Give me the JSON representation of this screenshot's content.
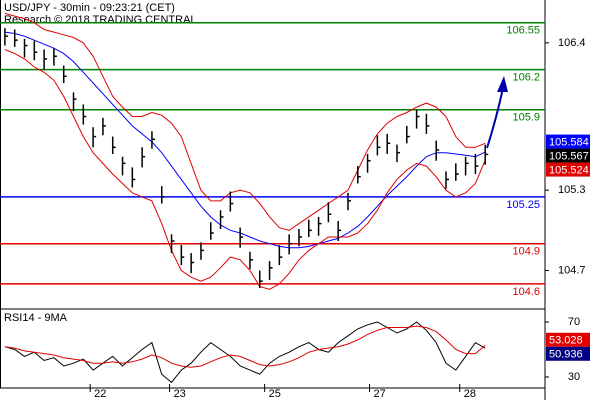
{
  "chart_data": [
    {
      "type": "ohlc",
      "title": "USD/JPY - 30min - 09:23:21 (CET)",
      "subtitle": "Research © 2018 TRADING CENTRAL",
      "xlim": [
        -0.5,
        55.1
      ],
      "ylim": [
        104.42,
        106.72
      ],
      "yticks": [
        106.4,
        105.3,
        104.7
      ],
      "color": "#000000",
      "close_boxed": true,
      "high": [
        106.51,
        106.5,
        106.43,
        106.42,
        106.35,
        106.36,
        106.23,
        106.03,
        105.94,
        105.77,
        105.84,
        105.7,
        105.55,
        105.47,
        105.62,
        105.74,
        105.33,
        104.97,
        104.89,
        104.83,
        104.91,
        105.06,
        105.15,
        105.29,
        105.02,
        104.84,
        104.7,
        104.77,
        104.89,
        104.97,
        105.01,
        105.08,
        105.1,
        105.21,
        105.07,
        105.28,
        105.48,
        105.57,
        105.71,
        105.72,
        105.64,
        105.78,
        105.9,
        105.87,
        105.67,
        105.44,
        105.5,
        105.55,
        105.57,
        105.64
      ],
      "low": [
        106.38,
        106.37,
        106.29,
        106.27,
        106.2,
        106.23,
        106.1,
        105.89,
        105.79,
        105.62,
        105.71,
        105.57,
        105.41,
        105.32,
        105.47,
        105.61,
        105.2,
        104.83,
        104.74,
        104.68,
        104.78,
        104.93,
        105.01,
        105.14,
        104.87,
        104.71,
        104.57,
        104.63,
        104.74,
        104.82,
        104.88,
        104.95,
        104.96,
        105.06,
        104.92,
        105.15,
        105.35,
        105.43,
        105.56,
        105.57,
        105.51,
        105.65,
        105.76,
        105.72,
        105.52,
        105.31,
        105.37,
        105.41,
        105.42,
        105.49
      ],
      "close": [
        106.45,
        106.42,
        106.38,
        106.33,
        106.28,
        106.3,
        106.15,
        105.98,
        105.85,
        105.7,
        105.78,
        105.62,
        105.5,
        105.38,
        105.55,
        105.68,
        105.25,
        104.92,
        104.8,
        104.76,
        104.85,
        104.98,
        105.1,
        105.2,
        104.95,
        104.78,
        104.62,
        104.72,
        104.8,
        104.9,
        104.95,
        105.0,
        105.05,
        105.12,
        105.0,
        105.22,
        105.4,
        105.52,
        105.62,
        105.65,
        105.58,
        105.7,
        105.85,
        105.78,
        105.6,
        105.38,
        105.42,
        105.5,
        105.48,
        105.567
      ],
      "overlays": [
        {
          "color": "#0000ff",
          "boxed": true,
          "values": [
            106.48,
            106.47,
            106.45,
            106.42,
            106.39,
            106.36,
            106.32,
            106.26,
            106.18,
            106.1,
            106.02,
            105.94,
            105.86,
            105.78,
            105.72,
            105.66,
            105.58,
            105.48,
            105.38,
            105.28,
            105.18,
            105.1,
            105.04,
            105.0,
            104.98,
            104.95,
            104.92,
            104.9,
            104.88,
            104.87,
            104.87,
            104.88,
            104.9,
            104.92,
            104.94,
            104.98,
            105.03,
            105.1,
            105.18,
            105.26,
            105.33,
            105.4,
            105.48,
            105.55,
            105.58,
            105.58,
            105.57,
            105.56,
            105.55,
            105.584
          ]
        },
        {
          "color": "#e00000",
          "boxed": false,
          "values": [
            106.62,
            106.6,
            106.58,
            106.55,
            106.5,
            106.48,
            106.46,
            106.44,
            106.4,
            106.3,
            106.15,
            106.0,
            105.92,
            105.85,
            105.85,
            105.88,
            105.86,
            105.8,
            105.7,
            105.5,
            105.3,
            105.22,
            105.22,
            105.28,
            105.3,
            105.28,
            105.2,
            105.1,
            105.02,
            105.0,
            105.05,
            105.1,
            105.15,
            105.2,
            105.25,
            105.3,
            105.45,
            105.6,
            105.72,
            105.8,
            105.85,
            105.88,
            105.92,
            105.95,
            105.92,
            105.85,
            105.7,
            105.62,
            105.62,
            105.65
          ]
        },
        {
          "color": "#e00000",
          "boxed": true,
          "values": [
            106.35,
            106.32,
            106.28,
            106.22,
            106.18,
            106.12,
            106.0,
            105.85,
            105.7,
            105.58,
            105.5,
            105.42,
            105.35,
            105.28,
            105.25,
            105.22,
            105.05,
            104.85,
            104.7,
            104.65,
            104.62,
            104.65,
            104.72,
            104.8,
            104.78,
            104.7,
            104.58,
            104.56,
            104.6,
            104.68,
            104.78,
            104.85,
            104.9,
            104.95,
            104.95,
            104.95,
            104.98,
            105.05,
            105.15,
            105.28,
            105.38,
            105.45,
            105.5,
            105.48,
            105.4,
            105.3,
            105.25,
            105.28,
            105.35,
            105.524
          ]
        }
      ],
      "levels": [
        {
          "value": 106.55,
          "color": "#008000"
        },
        {
          "value": 106.2,
          "color": "#008000"
        },
        {
          "value": 105.9,
          "color": "#008000"
        },
        {
          "value": 105.25,
          "color": "#0000ff"
        },
        {
          "value": 104.9,
          "color": "#e00000"
        },
        {
          "value": 104.6,
          "color": "#e00000"
        }
      ]
    },
    {
      "type": "line",
      "title": "RSI14 - 9MA",
      "xlim": [
        -0.5,
        55.1
      ],
      "ylim": [
        20.5,
        77.3
      ],
      "yticks": [
        70,
        30
      ],
      "xticks": [
        {
          "value": 8.7,
          "label": "22"
        },
        {
          "value": 16.8,
          "label": "23"
        },
        {
          "value": 26.5,
          "label": "25"
        },
        {
          "value": 37.2,
          "label": "27"
        },
        {
          "value": 46.4,
          "label": "28"
        }
      ],
      "series": [
        {
          "color": "#000000",
          "box_color": "#000080",
          "values": [
            52,
            50,
            45,
            48,
            42,
            44,
            38,
            40,
            43,
            35,
            40,
            45,
            38,
            44,
            50,
            55,
            32,
            26,
            35,
            40,
            48,
            55,
            50,
            45,
            38,
            35,
            32,
            40,
            45,
            48,
            52,
            55,
            50,
            48,
            55,
            60,
            65,
            68,
            70,
            66,
            62,
            65,
            70,
            64,
            55,
            40,
            35,
            45,
            55,
            50.936
          ]
        },
        {
          "color": "#e00000",
          "box_color": "#e00000",
          "values": [
            52,
            51,
            49,
            48,
            47,
            46,
            44,
            43,
            42,
            40,
            40,
            41,
            40,
            41,
            43,
            46,
            44,
            40,
            38,
            37,
            38,
            41,
            44,
            46,
            45,
            42,
            39,
            38,
            39,
            41,
            44,
            48,
            50,
            51,
            52,
            54,
            57,
            61,
            64,
            66,
            66,
            66,
            67,
            66,
            63,
            57,
            50,
            47,
            47,
            53.028
          ]
        }
      ]
    }
  ]
}
